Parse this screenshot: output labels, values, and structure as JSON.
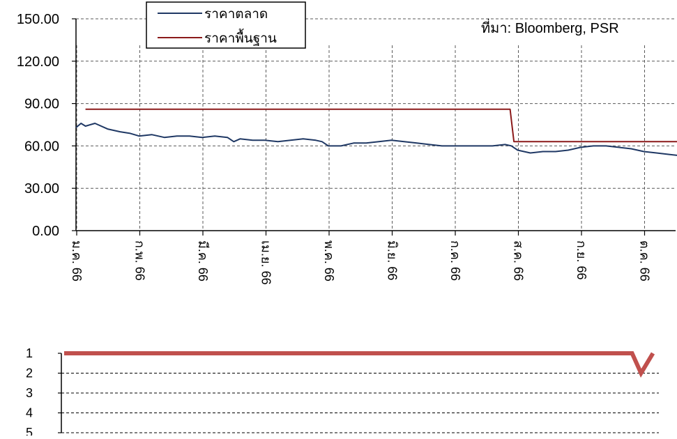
{
  "source_note": "ที่มา:  Bloomberg, PSR",
  "colors": {
    "market": "#1f3864",
    "fundamental": "#8b1a1a",
    "rank": "#c0504d",
    "grid": "#595959",
    "axis": "#000000"
  },
  "chart_data": [
    {
      "type": "line",
      "title": "",
      "xlabel": "",
      "ylabel": "",
      "ylim": [
        0,
        150
      ],
      "yticks": [
        "0.00",
        "30.00",
        "60.00",
        "90.00",
        "120.00",
        "150.00"
      ],
      "categories": [
        "ม.ค. 66",
        "ก.พ. 66",
        "มี.ค. 66",
        "เม.ย. 66",
        "พ.ค. 66",
        "มิ.ย. 66",
        "ก.ค. 66",
        "ส.ค. 66",
        "ก.ย. 66",
        "ต.ค. 66"
      ],
      "grid": true,
      "legend_position": "top-center",
      "series": [
        {
          "name": "ราคาตลาด",
          "color": "#1f3864",
          "x": [
            0,
            0.08,
            0.15,
            0.3,
            0.5,
            0.7,
            0.85,
            1.0,
            1.2,
            1.4,
            1.6,
            1.8,
            2.0,
            2.2,
            2.4,
            2.5,
            2.6,
            2.8,
            3.0,
            3.2,
            3.4,
            3.6,
            3.8,
            3.9,
            4.0,
            4.2,
            4.4,
            4.6,
            4.8,
            5.0,
            5.2,
            5.4,
            5.6,
            5.8,
            6.0,
            6.2,
            6.4,
            6.6,
            6.8,
            6.9,
            7.0,
            7.2,
            7.4,
            7.6,
            7.8,
            8.0,
            8.2,
            8.4,
            8.6,
            8.8,
            9.0,
            9.2,
            9.4,
            9.6,
            9.75
          ],
          "y": [
            73,
            76,
            74,
            76,
            72,
            70,
            69,
            67,
            68,
            66,
            67,
            67,
            66,
            67,
            66,
            63,
            65,
            64,
            64,
            63,
            64,
            65,
            64,
            63,
            60,
            60,
            62,
            62,
            63,
            64,
            63,
            62,
            61,
            60,
            60,
            60,
            60,
            60,
            61,
            60,
            57,
            55,
            56,
            56,
            57,
            59,
            60,
            60,
            59,
            58,
            56,
            55,
            54,
            53,
            52
          ]
        },
        {
          "name": "ราคาพื้นฐาน",
          "color": "#8b1a1a",
          "x": [
            0.15,
            6.88,
            6.94,
            9.75
          ],
          "y": [
            86,
            86,
            63,
            63
          ]
        }
      ]
    },
    {
      "type": "line",
      "title": "",
      "ylim": [
        1,
        5
      ],
      "y_inverted": true,
      "yticks": [
        "1",
        "2",
        "3",
        "4",
        "5"
      ],
      "grid": true,
      "series": [
        {
          "color": "#c0504d",
          "x": [
            0,
            0.955,
            0.97,
            0.99
          ],
          "y": [
            1,
            1,
            2,
            1
          ]
        }
      ]
    }
  ]
}
